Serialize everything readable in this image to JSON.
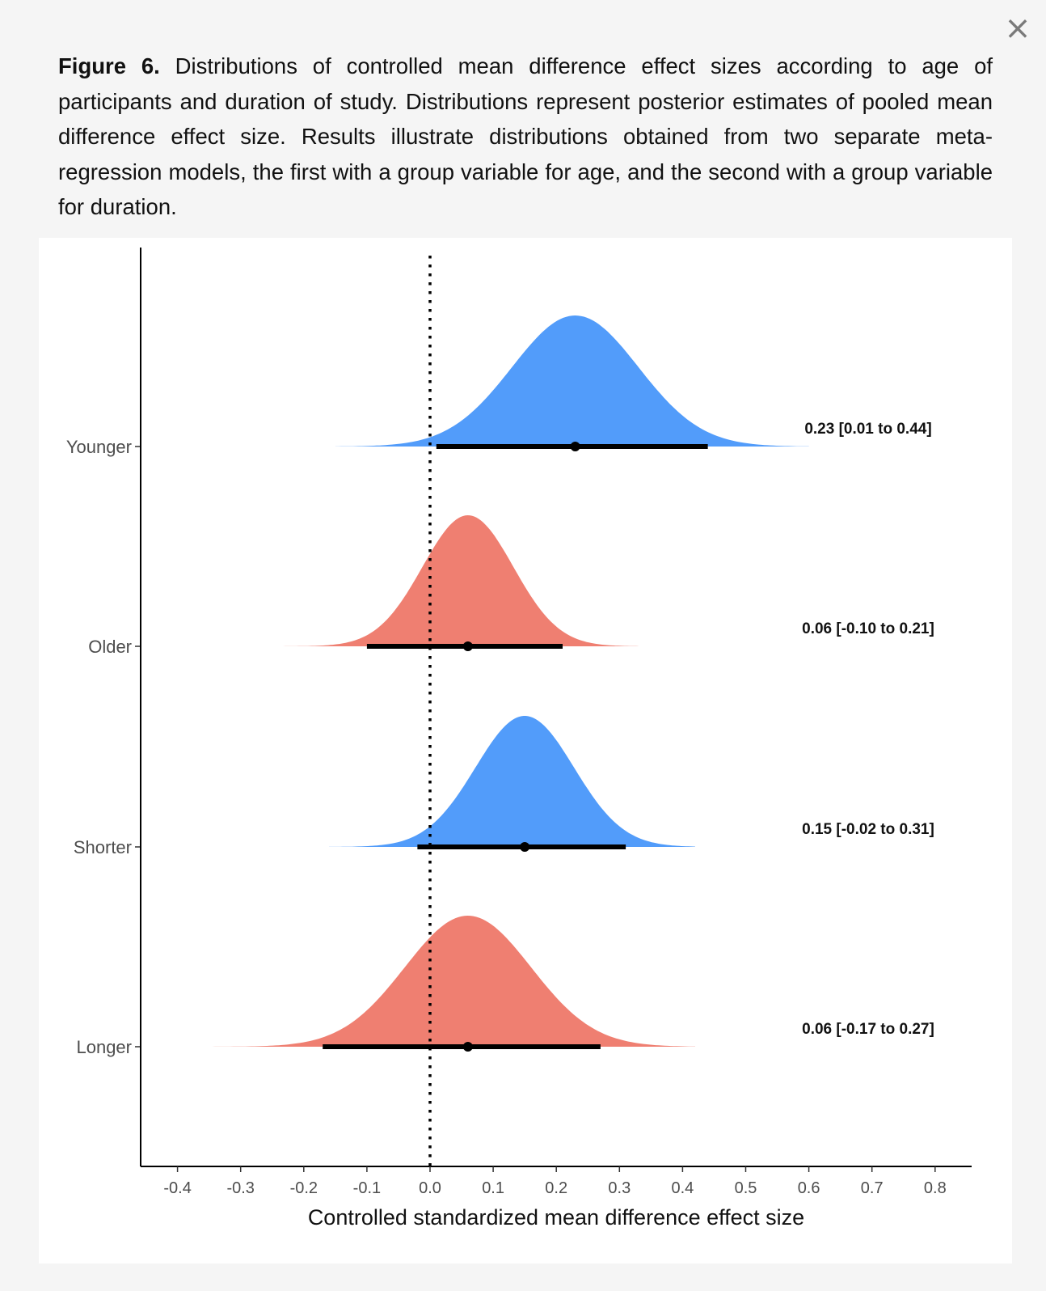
{
  "modal": {
    "close_icon": "×",
    "caption_label": "Figure 6.",
    "caption_text": "Distributions of controlled mean difference effect sizes according to age of participants and duration of study. Distributions represent posterior estimates of pooled mean difference effect size. Results illustrate distributions obtained from two separate meta-regression models, the first with a group variable for age, and the second with a group variable for duration."
  },
  "chart_data": {
    "type": "ridgeline",
    "title": "",
    "xlabel": "Controlled standardized mean difference effect size",
    "ylabel": "",
    "xlim": [
      -0.45,
      0.87
    ],
    "x_ticks": [
      "-0.4",
      "-0.3",
      "-0.2",
      "-0.1",
      "0.0",
      "0.1",
      "0.2",
      "0.3",
      "0.4",
      "0.5",
      "0.6",
      "0.7",
      "0.8"
    ],
    "reference_line": {
      "x": 0.0,
      "style": "dotted"
    },
    "grid": false,
    "legend": "none",
    "colors": {
      "blue": "#529cfa",
      "red": "#ef7f71",
      "interval": "#000000",
      "axis": "#000000"
    },
    "series": [
      {
        "name": "Younger",
        "color": "#529cfa",
        "estimate": 0.23,
        "ci": [
          0.01,
          0.44
        ],
        "range": [
          -0.15,
          0.6
        ],
        "sd": 0.1,
        "label": "0.23 [0.01 to 0.44]"
      },
      {
        "name": "Older",
        "color": "#ef7f71",
        "estimate": 0.06,
        "ci": [
          -0.1,
          0.21
        ],
        "range": [
          -0.24,
          0.33
        ],
        "sd": 0.072,
        "label": "0.06 [-0.10 to 0.21]"
      },
      {
        "name": "Shorter",
        "color": "#529cfa",
        "estimate": 0.15,
        "ci": [
          -0.02,
          0.31
        ],
        "range": [
          -0.16,
          0.42
        ],
        "sd": 0.078,
        "label": "0.15 [-0.02 to 0.31]"
      },
      {
        "name": "Longer",
        "color": "#ef7f71",
        "estimate": 0.06,
        "ci": [
          -0.17,
          0.27
        ],
        "range": [
          -0.35,
          0.42
        ],
        "sd": 0.1,
        "label": "0.06 [-0.17 to 0.27]"
      }
    ]
  }
}
